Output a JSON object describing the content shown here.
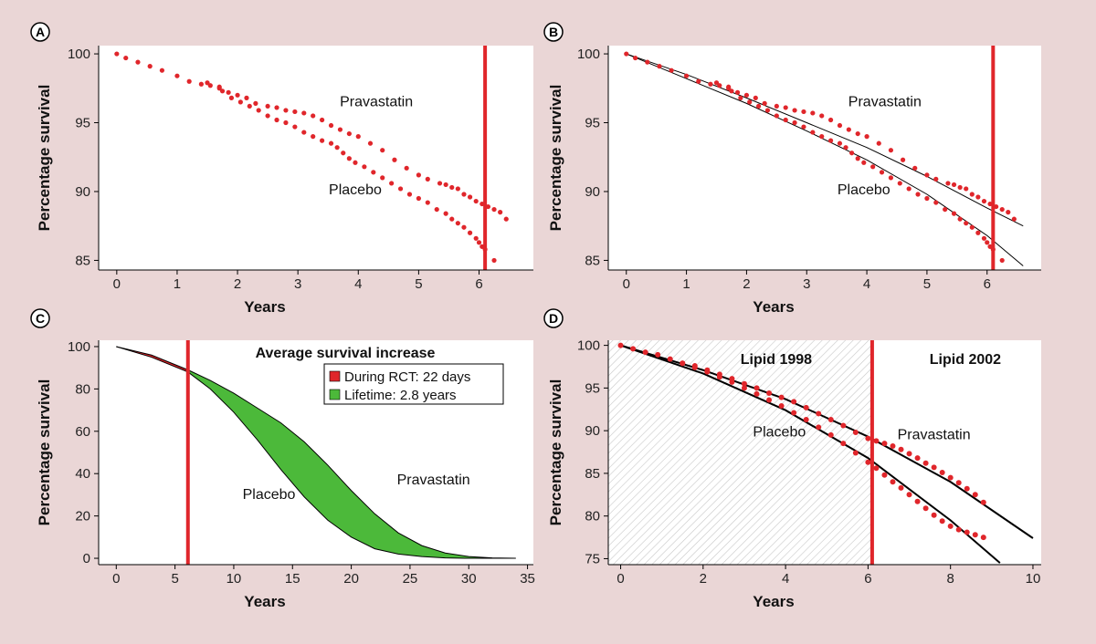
{
  "colors": {
    "background": "#ead6d6",
    "plot_bg": "#ffffff",
    "marker": "#e0262b",
    "trial_line": "#e0262b",
    "fit_line": "#000000",
    "rct_area": "#e0262b",
    "lifetime_area": "#4cb93a",
    "hatch": "#c8c8c8"
  },
  "chart_data": [
    {
      "panel": "A",
      "type": "scatter",
      "xlabel": "Years",
      "ylabel": "Percentage survival",
      "xlim": [
        -0.3,
        6.9
      ],
      "ylim": [
        84.3,
        100.6
      ],
      "xticks": [
        0,
        1,
        2,
        3,
        4,
        5,
        6
      ],
      "yticks": [
        85,
        90,
        95,
        100
      ],
      "vline": 6.1,
      "labels": [
        {
          "text": "Pravastatin",
          "x": 4.3,
          "y": 96.2
        },
        {
          "text": "Placebo",
          "x": 3.95,
          "y": 89.8
        }
      ],
      "series": [
        {
          "name": "Pravastatin",
          "x": [
            0,
            0.15,
            0.35,
            0.55,
            0.75,
            1.0,
            1.2,
            1.4,
            1.55,
            1.7,
            1.85,
            2.0,
            2.15,
            2.3,
            2.5,
            2.65,
            2.8,
            2.95,
            3.1,
            3.25,
            3.4,
            3.55,
            3.7,
            3.85,
            4.0,
            4.2,
            4.4,
            4.6,
            4.8,
            5.0,
            5.15,
            5.35,
            5.45,
            5.55,
            5.65,
            5.75,
            5.85,
            5.95,
            6.05,
            6.15,
            6.25,
            6.35,
            6.45
          ],
          "y": [
            100,
            99.7,
            99.4,
            99.1,
            98.8,
            98.4,
            98.0,
            97.8,
            97.7,
            97.5,
            97.2,
            97.0,
            96.8,
            96.4,
            96.2,
            96.1,
            95.9,
            95.8,
            95.7,
            95.5,
            95.2,
            94.8,
            94.5,
            94.2,
            94.0,
            93.5,
            93.0,
            92.3,
            91.7,
            91.2,
            90.9,
            90.6,
            90.5,
            90.3,
            90.2,
            89.8,
            89.6,
            89.3,
            89.1,
            88.9,
            88.7,
            88.5,
            88.0
          ]
        },
        {
          "name": "Placebo",
          "x": [
            1.5,
            1.7,
            1.75,
            1.9,
            2.05,
            2.2,
            2.35,
            2.5,
            2.65,
            2.8,
            2.95,
            3.1,
            3.25,
            3.4,
            3.55,
            3.65,
            3.75,
            3.85,
            3.95,
            4.1,
            4.25,
            4.4,
            4.55,
            4.7,
            4.85,
            5.0,
            5.15,
            5.3,
            5.45,
            5.55,
            5.65,
            5.75,
            5.85,
            5.95,
            6.0,
            6.05,
            6.1,
            6.25
          ],
          "y": [
            97.9,
            97.6,
            97.3,
            96.8,
            96.5,
            96.2,
            95.9,
            95.5,
            95.2,
            95.0,
            94.7,
            94.3,
            94.0,
            93.7,
            93.5,
            93.2,
            92.8,
            92.4,
            92.1,
            91.8,
            91.4,
            91.0,
            90.6,
            90.2,
            89.8,
            89.5,
            89.2,
            88.7,
            88.4,
            88.0,
            87.7,
            87.4,
            87.0,
            86.6,
            86.3,
            86.0,
            85.8,
            85.0
          ]
        }
      ]
    },
    {
      "panel": "B",
      "type": "scatter",
      "xlabel": "Years",
      "ylabel": "Percentage survival",
      "xlim": [
        -0.3,
        6.9
      ],
      "ylim": [
        84.3,
        100.6
      ],
      "xticks": [
        0,
        1,
        2,
        3,
        4,
        5,
        6
      ],
      "yticks": [
        85,
        90,
        95,
        100
      ],
      "vline": 6.1,
      "labels": [
        {
          "text": "Pravastatin",
          "x": 4.3,
          "y": 96.2
        },
        {
          "text": "Placebo",
          "x": 3.95,
          "y": 89.8
        }
      ],
      "series": [
        {
          "name": "Pravastatin",
          "x": [
            0,
            0.15,
            0.35,
            0.55,
            0.75,
            1.0,
            1.2,
            1.4,
            1.55,
            1.7,
            1.85,
            2.0,
            2.15,
            2.3,
            2.5,
            2.65,
            2.8,
            2.95,
            3.1,
            3.25,
            3.4,
            3.55,
            3.7,
            3.85,
            4.0,
            4.2,
            4.4,
            4.6,
            4.8,
            5.0,
            5.15,
            5.35,
            5.45,
            5.55,
            5.65,
            5.75,
            5.85,
            5.95,
            6.05,
            6.15,
            6.25,
            6.35,
            6.45
          ],
          "y": [
            100,
            99.7,
            99.4,
            99.1,
            98.8,
            98.4,
            98.0,
            97.8,
            97.7,
            97.5,
            97.2,
            97.0,
            96.8,
            96.4,
            96.2,
            96.1,
            95.9,
            95.8,
            95.7,
            95.5,
            95.2,
            94.8,
            94.5,
            94.2,
            94.0,
            93.5,
            93.0,
            92.3,
            91.7,
            91.2,
            90.9,
            90.6,
            90.5,
            90.3,
            90.2,
            89.8,
            89.6,
            89.3,
            89.1,
            88.9,
            88.7,
            88.5,
            88.0
          ]
        },
        {
          "name": "Placebo",
          "x": [
            1.5,
            1.7,
            1.75,
            1.9,
            2.05,
            2.2,
            2.35,
            2.5,
            2.65,
            2.8,
            2.95,
            3.1,
            3.25,
            3.4,
            3.55,
            3.65,
            3.75,
            3.85,
            3.95,
            4.1,
            4.25,
            4.4,
            4.55,
            4.7,
            4.85,
            5.0,
            5.15,
            5.3,
            5.45,
            5.55,
            5.65,
            5.75,
            5.85,
            5.95,
            6.0,
            6.05,
            6.1,
            6.25
          ],
          "y": [
            97.9,
            97.6,
            97.3,
            96.8,
            96.5,
            96.2,
            95.9,
            95.5,
            95.2,
            95.0,
            94.7,
            94.3,
            94.0,
            93.7,
            93.5,
            93.2,
            92.8,
            92.4,
            92.1,
            91.8,
            91.4,
            91.0,
            90.6,
            90.2,
            89.8,
            89.5,
            89.2,
            88.7,
            88.4,
            88.0,
            87.7,
            87.4,
            87.0,
            86.6,
            86.3,
            86.0,
            85.8,
            85.0
          ]
        }
      ],
      "fits": [
        {
          "name": "Pravastatin",
          "x": [
            0,
            1,
            2,
            3,
            4,
            5,
            6,
            6.6
          ],
          "y": [
            100,
            98.5,
            96.8,
            95.0,
            93.2,
            91.1,
            88.8,
            87.5
          ]
        },
        {
          "name": "Placebo",
          "x": [
            0,
            1,
            2,
            3,
            4,
            5,
            6,
            6.6
          ],
          "y": [
            100,
            98.2,
            96.4,
            94.4,
            92.3,
            89.8,
            86.8,
            84.6
          ]
        }
      ]
    },
    {
      "panel": "C",
      "type": "area",
      "xlabel": "Years",
      "ylabel": "Percentage survival",
      "xlim": [
        -1.5,
        35.5
      ],
      "ylim": [
        -3,
        103
      ],
      "xticks": [
        0,
        5,
        10,
        15,
        20,
        25,
        30,
        35
      ],
      "yticks": [
        0,
        20,
        40,
        60,
        80,
        100
      ],
      "vline": 6.1,
      "legend": {
        "title": "Average survival increase",
        "items": [
          {
            "label": "During RCT: 22 days",
            "color": "#e0262b"
          },
          {
            "label": "Lifetime: 2.8 years",
            "color": "#4cb93a"
          }
        ]
      },
      "labels": [
        {
          "text": "Placebo",
          "x": 13,
          "y": 28
        },
        {
          "text": "Pravastatin",
          "x": 27,
          "y": 35
        }
      ],
      "series": [
        {
          "name": "Pravastatin",
          "x": [
            0,
            3,
            6.1,
            8,
            10,
            12,
            14,
            16,
            18,
            20,
            22,
            24,
            26,
            28,
            30,
            32,
            34
          ],
          "y": [
            100,
            96,
            89,
            84,
            78,
            71,
            64,
            55,
            44,
            32,
            21,
            12,
            6,
            2.5,
            0.8,
            0.2,
            0
          ]
        },
        {
          "name": "Placebo",
          "x": [
            0,
            3,
            6.1,
            8,
            10,
            12,
            14,
            16,
            18,
            20,
            22,
            24,
            26,
            28,
            30,
            32,
            34
          ],
          "y": [
            100,
            95,
            88,
            80,
            69,
            56,
            42,
            29,
            18,
            10,
            4.5,
            2,
            0.8,
            0.2,
            0,
            0,
            0
          ]
        }
      ]
    },
    {
      "panel": "D",
      "type": "scatter",
      "xlabel": "Years",
      "ylabel": "Percentage survival",
      "xlim": [
        -0.3,
        10.2
      ],
      "ylim": [
        74.3,
        100.6
      ],
      "xticks": [
        0,
        2,
        4,
        6,
        8,
        10
      ],
      "yticks": [
        75,
        80,
        85,
        90,
        95,
        100
      ],
      "vline": 6.1,
      "regions": [
        {
          "label": "Lipid 1998",
          "hatched": true
        },
        {
          "label": "Lipid 2002",
          "hatched": false
        }
      ],
      "labels": [
        {
          "text": "Placebo",
          "x": 3.85,
          "y": 89.3
        },
        {
          "text": "Pravastatin",
          "x": 7.6,
          "y": 89.0
        }
      ],
      "series": [
        {
          "name": "Pravastatin",
          "x": [
            0,
            0.3,
            0.6,
            0.9,
            1.2,
            1.5,
            1.8,
            2.1,
            2.4,
            2.7,
            3.0,
            3.3,
            3.6,
            3.9,
            4.2,
            4.5,
            4.8,
            5.1,
            5.4,
            5.7,
            6.0,
            6.2,
            6.4,
            6.6,
            6.8,
            7.0,
            7.2,
            7.4,
            7.6,
            7.8,
            8.0,
            8.2,
            8.4,
            8.6,
            8.8
          ],
          "y": [
            100,
            99.6,
            99.2,
            98.9,
            98.4,
            97.9,
            97.6,
            97.1,
            96.6,
            96.1,
            95.5,
            95.0,
            94.4,
            93.9,
            93.4,
            92.7,
            92.0,
            91.3,
            90.6,
            89.8,
            89.1,
            88.8,
            88.5,
            88.2,
            87.8,
            87.3,
            86.8,
            86.2,
            85.7,
            85.1,
            84.5,
            83.9,
            83.2,
            82.5,
            81.6
          ]
        },
        {
          "name": "Placebo",
          "x": [
            1.5,
            1.8,
            2.1,
            2.4,
            2.7,
            3.0,
            3.3,
            3.6,
            3.9,
            4.2,
            4.5,
            4.8,
            5.1,
            5.4,
            5.7,
            6.0,
            6.2,
            6.4,
            6.6,
            6.8,
            7.0,
            7.2,
            7.4,
            7.6,
            7.8,
            8.0,
            8.2,
            8.4,
            8.6,
            8.8
          ],
          "y": [
            97.9,
            97.4,
            96.9,
            96.3,
            95.7,
            95.0,
            94.3,
            93.6,
            92.9,
            92.1,
            91.3,
            90.4,
            89.5,
            88.5,
            87.4,
            86.3,
            85.6,
            84.8,
            84.0,
            83.3,
            82.5,
            81.7,
            80.9,
            80.1,
            79.4,
            78.8,
            78.4,
            78.1,
            77.8,
            77.5
          ]
        }
      ],
      "fits": [
        {
          "name": "Pravastatin",
          "x": [
            0,
            2,
            4,
            6,
            8,
            10
          ],
          "y": [
            100,
            97.1,
            93.7,
            89.3,
            84.0,
            77.4
          ]
        },
        {
          "name": "Placebo",
          "x": [
            0,
            2,
            4,
            6,
            8,
            9.2
          ],
          "y": [
            100,
            96.7,
            92.4,
            86.8,
            79.5,
            74.5
          ]
        }
      ]
    }
  ]
}
